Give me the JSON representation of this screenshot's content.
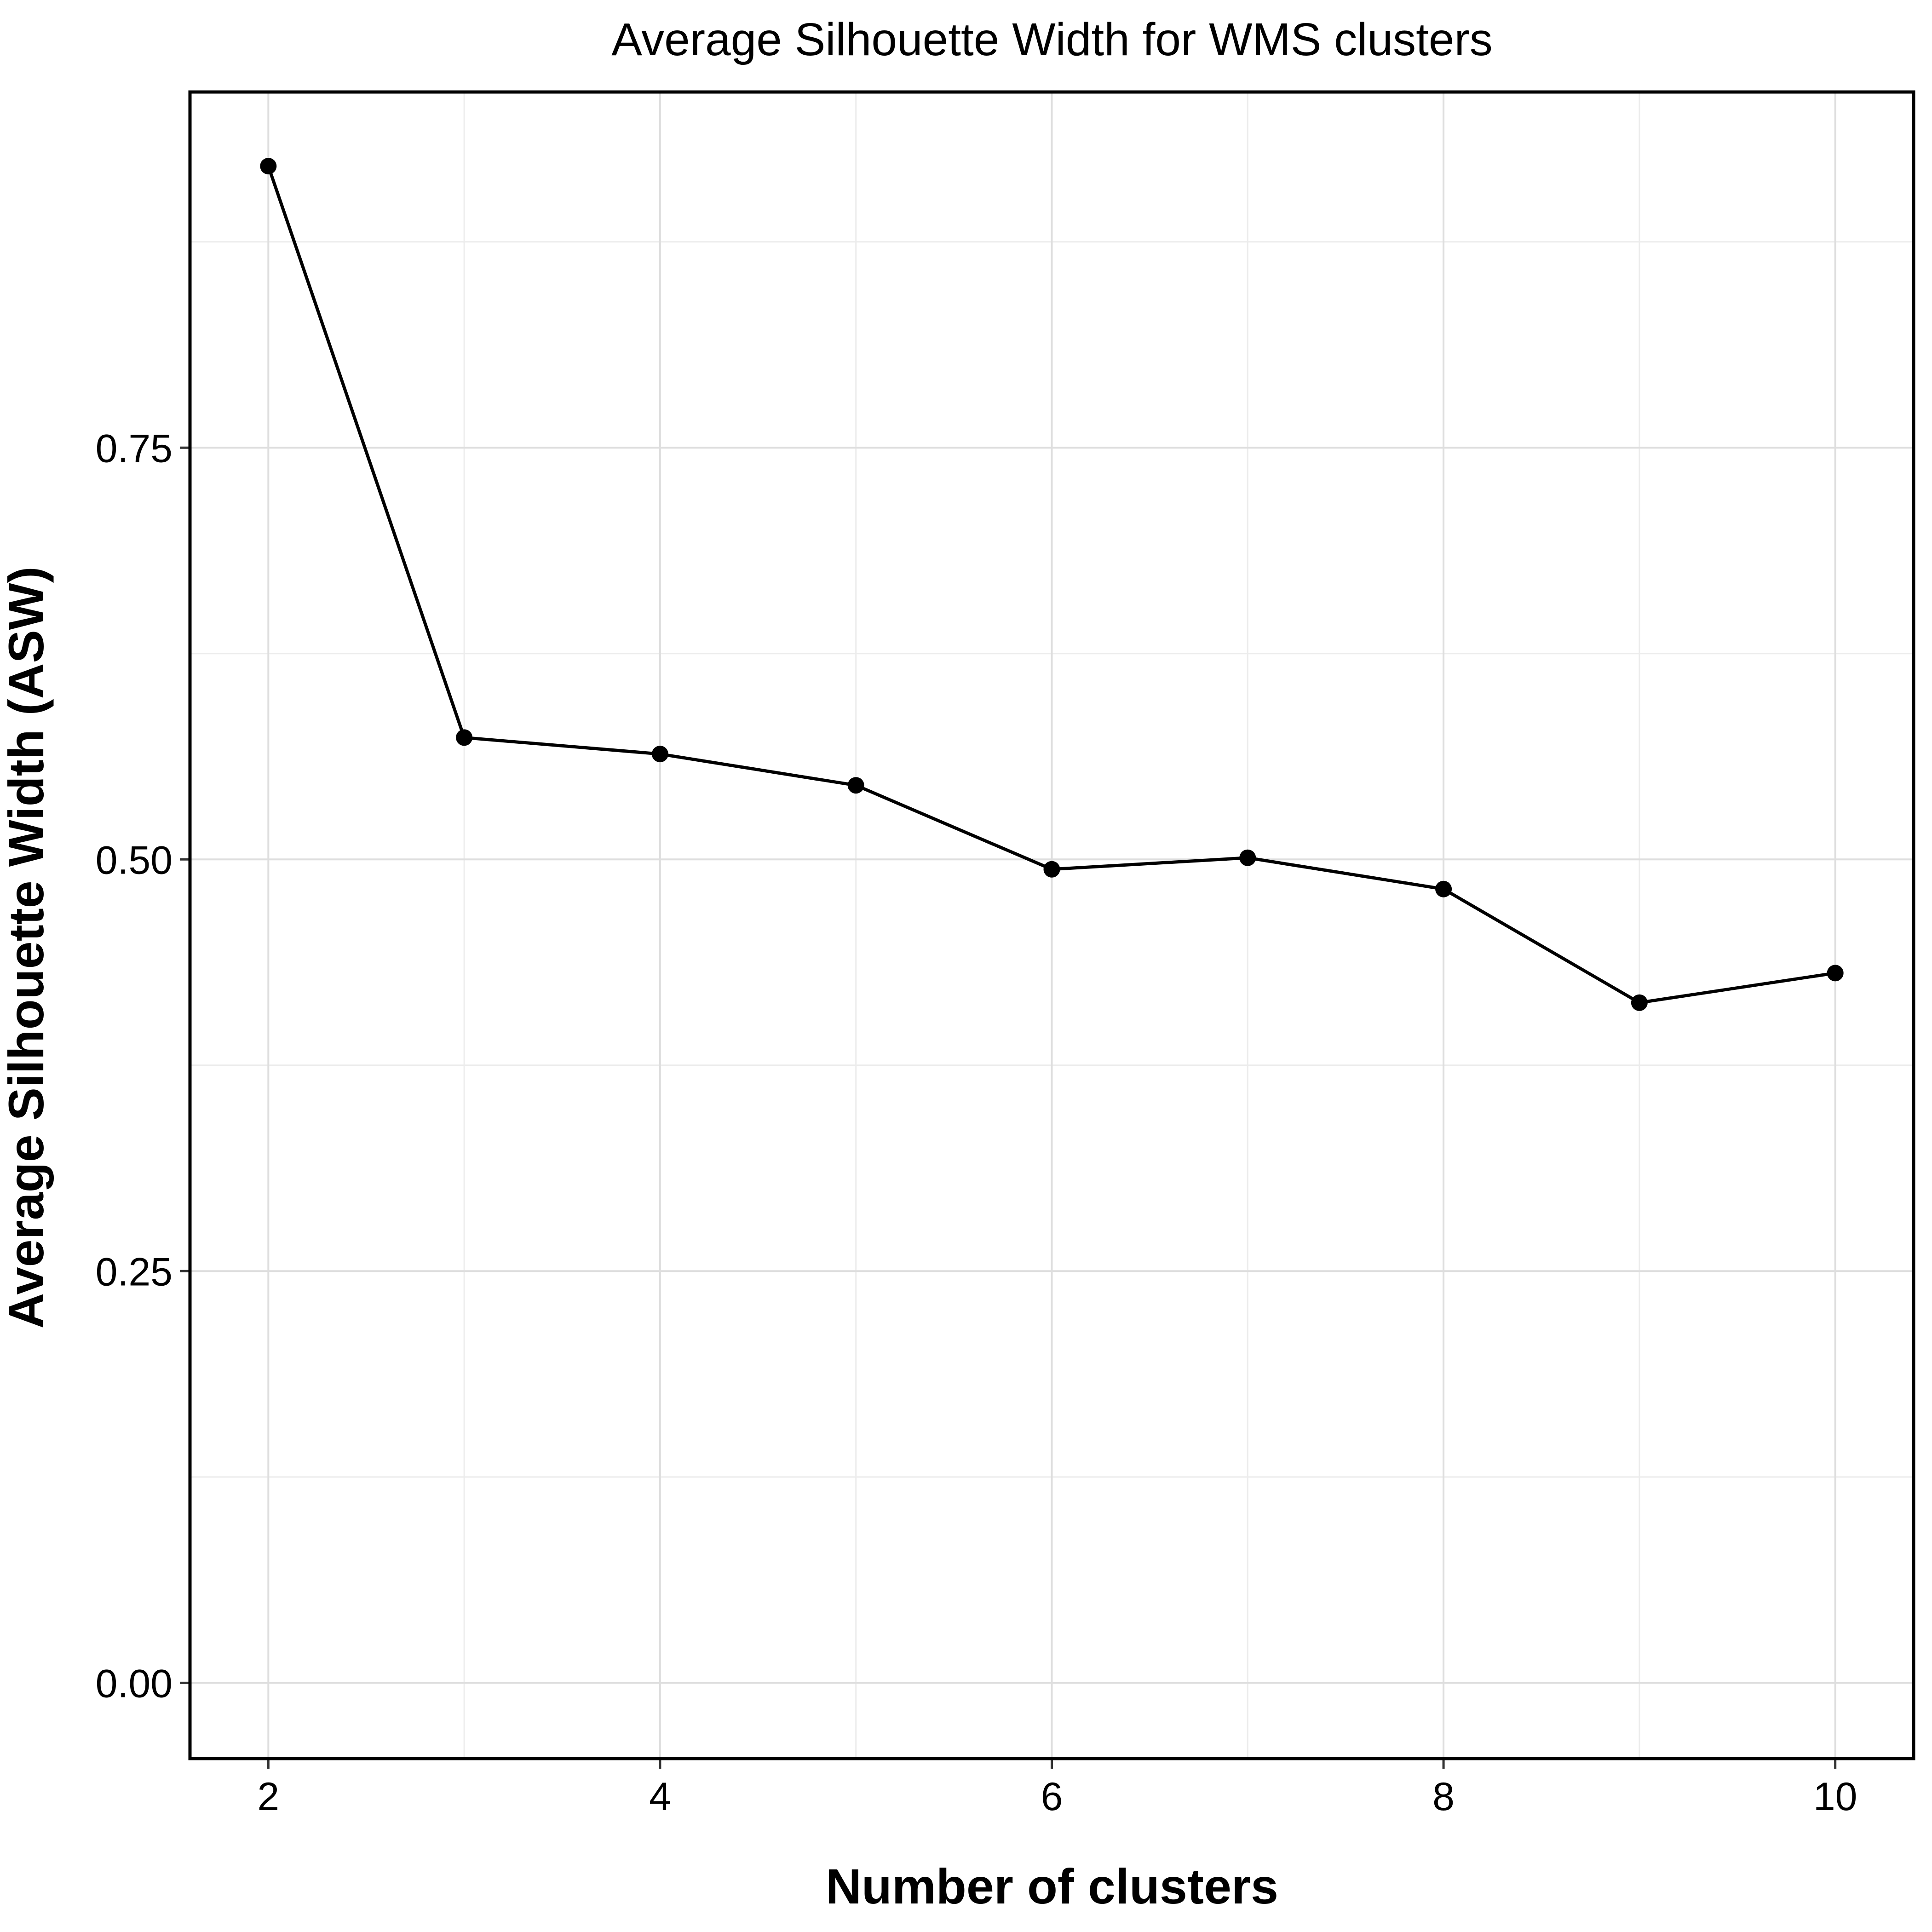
{
  "chart_data": {
    "type": "line",
    "title": "Average Silhouette Width for WMS clusters",
    "xlabel": "Number of clusters",
    "ylabel": "Average Silhouette Width (ASW)",
    "x": [
      2,
      3,
      4,
      5,
      6,
      7,
      8,
      9,
      10
    ],
    "series": [
      {
        "values": [
          0.921,
          0.574,
          0.564,
          0.545,
          0.494,
          0.501,
          0.482,
          0.413,
          0.431
        ]
      }
    ],
    "xlim": [
      1.6,
      10.4
    ],
    "ylim": [
      -0.046,
      0.966
    ],
    "xticks": [
      2,
      4,
      6,
      8,
      10
    ],
    "xtick_labels": [
      "2",
      "4",
      "6",
      "8",
      "10"
    ],
    "yticks": [
      0,
      0.25,
      0.5,
      0.75
    ],
    "ytick_labels": [
      "0.00",
      "0.25",
      "0.50",
      "0.75"
    ],
    "x_minor": [
      3,
      5,
      7,
      9
    ],
    "y_minor": [
      0.125,
      0.375,
      0.625,
      0.875
    ],
    "grid": true,
    "legend": "none",
    "colors": {
      "line": "#000000",
      "point": "#000000",
      "grid": "#dedede",
      "background": "#ffffff"
    }
  }
}
